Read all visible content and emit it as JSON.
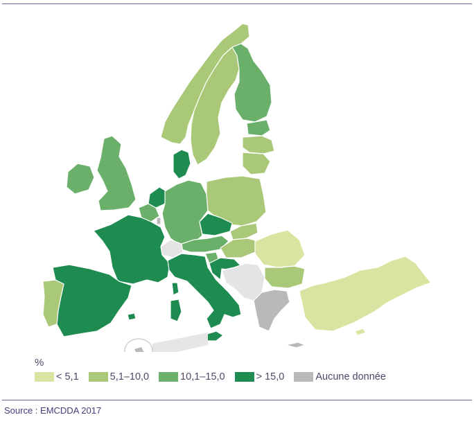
{
  "legend": {
    "unit": "%",
    "items": [
      {
        "label": "< 5,1",
        "color": "#d8e4a0",
        "key": "c1"
      },
      {
        "label": "5,1–10,0",
        "color": "#a9c878",
        "key": "c2"
      },
      {
        "label": "10,1–15,0",
        "color": "#6aaf6a",
        "key": "c3"
      },
      {
        "label": "> 15,0",
        "color": "#1e8c50",
        "key": "c4"
      },
      {
        "label": "Aucune donnée",
        "color": "#b9b9b9",
        "key": "na"
      }
    ]
  },
  "source": "Source : EMCDDA 2017",
  "colors": {
    "c1": "#d8e4a0",
    "c2": "#a9c878",
    "c3": "#6aaf6a",
    "c4": "#1e8c50",
    "na": "#b9b9b9",
    "nodata_light": "#e4e4e4",
    "rules": "#6b5b8f"
  }
}
